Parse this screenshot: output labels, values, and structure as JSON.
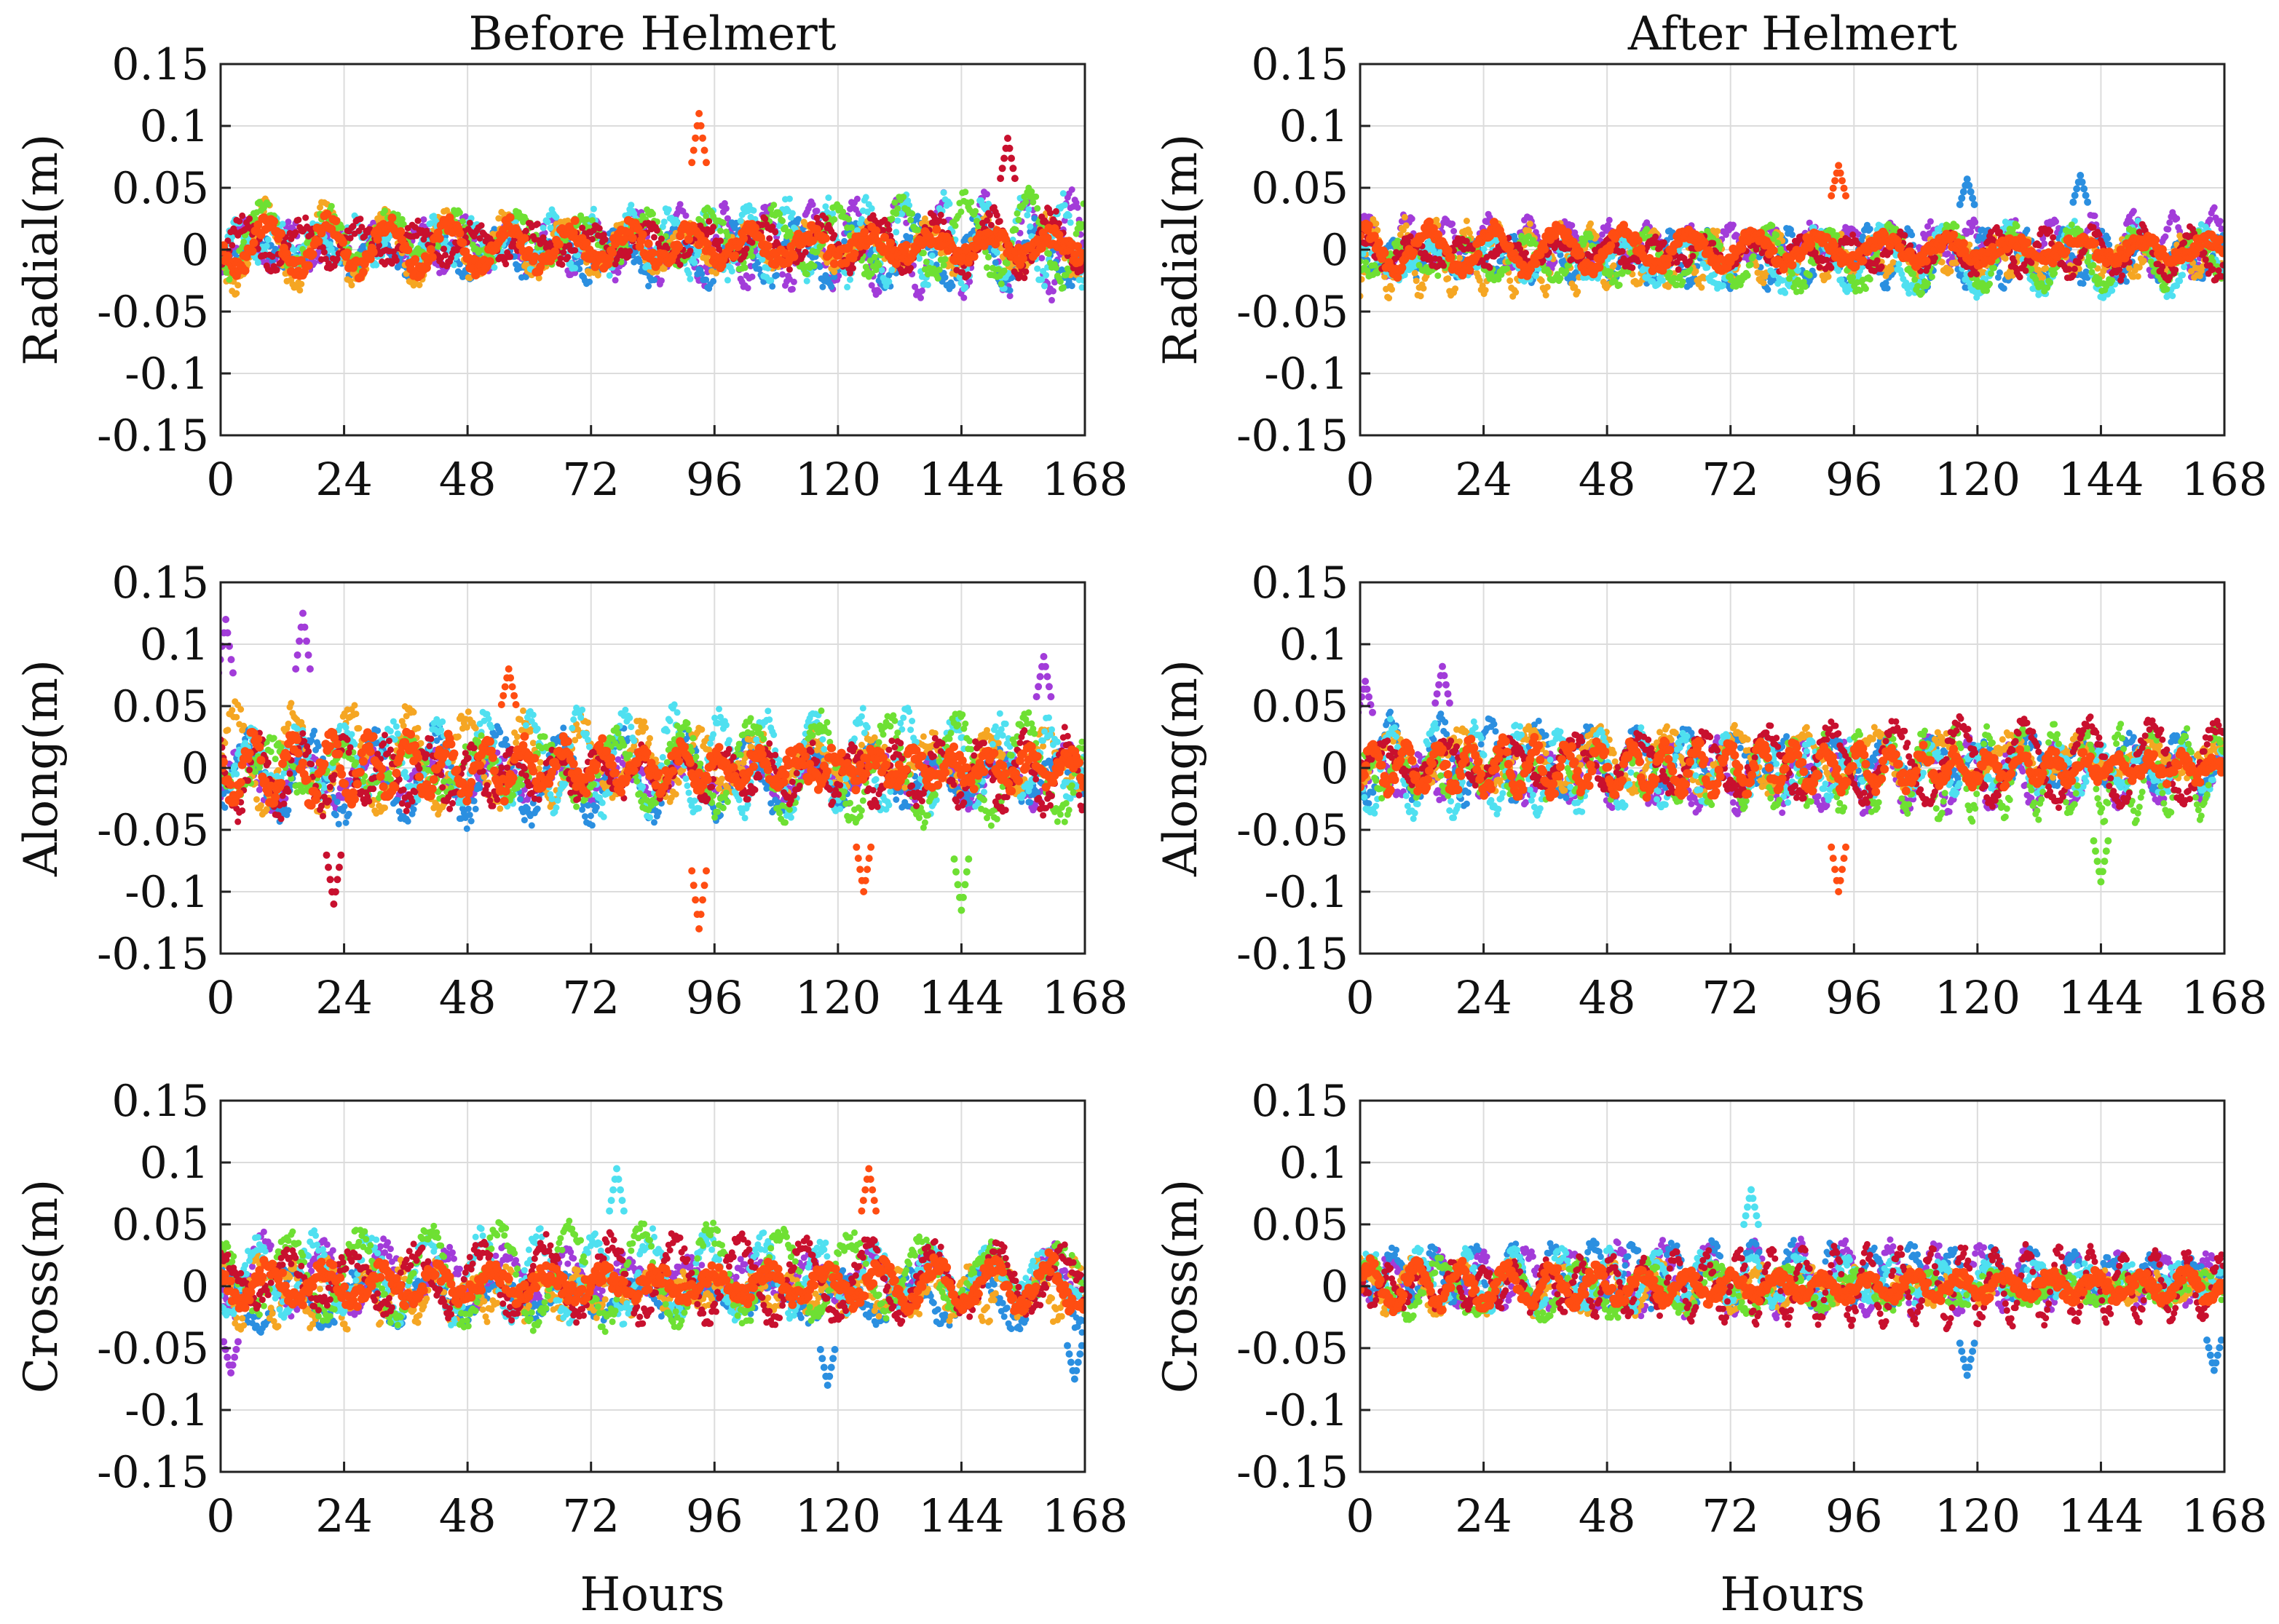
{
  "figure": {
    "column_titles": [
      "Before Helmert",
      "After Helmert"
    ],
    "xlabel": "Hours"
  },
  "palette": [
    "#a23cd9",
    "#2b8fe0",
    "#f5a623",
    "#4fe0f0",
    "#6ee033",
    "#c8102e",
    "#ff4d12"
  ],
  "chart_data": [
    {
      "type": "scatter",
      "panel": "radial-before",
      "title": "Before Helmert",
      "xlabel": "",
      "ylabel": "Radial(m)",
      "xlim": [
        0,
        168
      ],
      "ylim": [
        -0.15,
        0.15
      ],
      "xticks": [
        0,
        24,
        48,
        72,
        96,
        120,
        144,
        168
      ],
      "xtick_labels": [
        "0",
        "24",
        "48",
        "72",
        "96",
        "120",
        "144",
        "168"
      ],
      "yticks": [
        0.15,
        0.1,
        0.05,
        0,
        -0.05,
        -0.1,
        -0.15
      ],
      "ytick_labels": [
        "0.15",
        "0.1",
        "0.05",
        "0",
        "-0.05",
        "-0.1",
        "-0.15"
      ],
      "grid": true,
      "n_series": 7,
      "typical_range": [
        -0.04,
        0.06
      ],
      "noise": 0.03,
      "spikes": [
        {
          "x": 93,
          "y": 0.11,
          "series": 6
        },
        {
          "x": 153,
          "y": 0.09,
          "series": 5
        }
      ]
    },
    {
      "type": "scatter",
      "panel": "radial-after",
      "title": "After Helmert",
      "xlabel": "",
      "ylabel": "Radial(m)",
      "xlim": [
        0,
        168
      ],
      "ylim": [
        -0.15,
        0.15
      ],
      "xticks": [
        0,
        24,
        48,
        72,
        96,
        120,
        144,
        168
      ],
      "xtick_labels": [
        "0",
        "24",
        "48",
        "72",
        "96",
        "120",
        "144",
        "168"
      ],
      "yticks": [
        0.15,
        0.1,
        0.05,
        0,
        -0.05,
        -0.1,
        -0.15
      ],
      "ytick_labels": [
        "0.15",
        "0.1",
        "0.05",
        "0",
        "-0.05",
        "-0.1",
        "-0.15"
      ],
      "grid": true,
      "n_series": 7,
      "typical_range": [
        -0.045,
        0.045
      ],
      "noise": 0.022,
      "spikes": [
        {
          "x": 93,
          "y": 0.068,
          "series": 6
        },
        {
          "x": 118,
          "y": 0.057,
          "series": 1
        },
        {
          "x": 140,
          "y": 0.06,
          "series": 1
        }
      ]
    },
    {
      "type": "scatter",
      "panel": "along-before",
      "title": "",
      "xlabel": "",
      "ylabel": "Along(m)",
      "xlim": [
        0,
        168
      ],
      "ylim": [
        -0.15,
        0.15
      ],
      "xticks": [
        0,
        24,
        48,
        72,
        96,
        120,
        144,
        168
      ],
      "xtick_labels": [
        "0",
        "24",
        "48",
        "72",
        "96",
        "120",
        "144",
        "168"
      ],
      "yticks": [
        0.15,
        0.1,
        0.05,
        0,
        -0.05,
        -0.1,
        -0.15
      ],
      "ytick_labels": [
        "0.15",
        "0.1",
        "0.05",
        "0",
        "-0.05",
        "-0.1",
        "-0.15"
      ],
      "grid": true,
      "n_series": 7,
      "typical_range": [
        -0.06,
        0.06
      ],
      "noise": 0.035,
      "spikes": [
        {
          "x": 1,
          "y": 0.12,
          "series": 0
        },
        {
          "x": 16,
          "y": 0.125,
          "series": 0
        },
        {
          "x": 22,
          "y": -0.11,
          "series": 5
        },
        {
          "x": 56,
          "y": 0.08,
          "series": 6
        },
        {
          "x": 93,
          "y": -0.13,
          "series": 6
        },
        {
          "x": 125,
          "y": -0.1,
          "series": 6
        },
        {
          "x": 144,
          "y": -0.115,
          "series": 4
        },
        {
          "x": 160,
          "y": 0.09,
          "series": 0
        }
      ]
    },
    {
      "type": "scatter",
      "panel": "along-after",
      "title": "",
      "xlabel": "",
      "ylabel": "Along(m)",
      "xlim": [
        0,
        168
      ],
      "ylim": [
        -0.15,
        0.15
      ],
      "xticks": [
        0,
        24,
        48,
        72,
        96,
        120,
        144,
        168
      ],
      "xtick_labels": [
        "0",
        "24",
        "48",
        "72",
        "96",
        "120",
        "144",
        "168"
      ],
      "yticks": [
        0.15,
        0.1,
        0.05,
        0,
        -0.05,
        -0.1,
        -0.15
      ],
      "ytick_labels": [
        "0.15",
        "0.1",
        "0.05",
        "0",
        "-0.05",
        "-0.1",
        "-0.15"
      ],
      "grid": true,
      "n_series": 7,
      "typical_range": [
        -0.05,
        0.05
      ],
      "noise": 0.025,
      "spikes": [
        {
          "x": 1,
          "y": 0.07,
          "series": 0
        },
        {
          "x": 16,
          "y": 0.082,
          "series": 0
        },
        {
          "x": 93,
          "y": -0.1,
          "series": 6
        },
        {
          "x": 144,
          "y": -0.092,
          "series": 4
        }
      ]
    },
    {
      "type": "scatter",
      "panel": "cross-before",
      "title": "",
      "xlabel": "Hours",
      "ylabel": "Cross(m)",
      "xlim": [
        0,
        168
      ],
      "ylim": [
        -0.15,
        0.15
      ],
      "xticks": [
        0,
        24,
        48,
        72,
        96,
        120,
        144,
        168
      ],
      "xtick_labels": [
        "0",
        "24",
        "48",
        "72",
        "96",
        "120",
        "144",
        "168"
      ],
      "yticks": [
        0.15,
        0.1,
        0.05,
        0,
        -0.05,
        -0.1,
        -0.15
      ],
      "ytick_labels": [
        "0.15",
        "0.1",
        "0.05",
        "0",
        "-0.05",
        "-0.1",
        "-0.15"
      ],
      "grid": true,
      "n_series": 7,
      "typical_range": [
        -0.05,
        0.06
      ],
      "noise": 0.032,
      "spikes": [
        {
          "x": 2,
          "y": -0.07,
          "series": 0
        },
        {
          "x": 77,
          "y": 0.095,
          "series": 3
        },
        {
          "x": 126,
          "y": 0.095,
          "series": 6
        },
        {
          "x": 118,
          "y": -0.08,
          "series": 1
        },
        {
          "x": 166,
          "y": -0.075,
          "series": 1
        }
      ]
    },
    {
      "type": "scatter",
      "panel": "cross-after",
      "title": "",
      "xlabel": "Hours",
      "ylabel": "Cross(m)",
      "xlim": [
        0,
        168
      ],
      "ylim": [
        -0.15,
        0.15
      ],
      "xticks": [
        0,
        24,
        48,
        72,
        96,
        120,
        144,
        168
      ],
      "xtick_labels": [
        "0",
        "24",
        "48",
        "72",
        "96",
        "120",
        "144",
        "168"
      ],
      "yticks": [
        0.15,
        0.1,
        0.05,
        0,
        -0.05,
        -0.1,
        -0.15
      ],
      "ytick_labels": [
        "0.15",
        "0.1",
        "0.05",
        "0",
        "-0.05",
        "-0.1",
        "-0.15"
      ],
      "grid": true,
      "n_series": 7,
      "typical_range": [
        -0.045,
        0.045
      ],
      "noise": 0.024,
      "spikes": [
        {
          "x": 76,
          "y": 0.078,
          "series": 3
        },
        {
          "x": 118,
          "y": -0.072,
          "series": 1
        },
        {
          "x": 166,
          "y": -0.068,
          "series": 1
        }
      ]
    }
  ]
}
